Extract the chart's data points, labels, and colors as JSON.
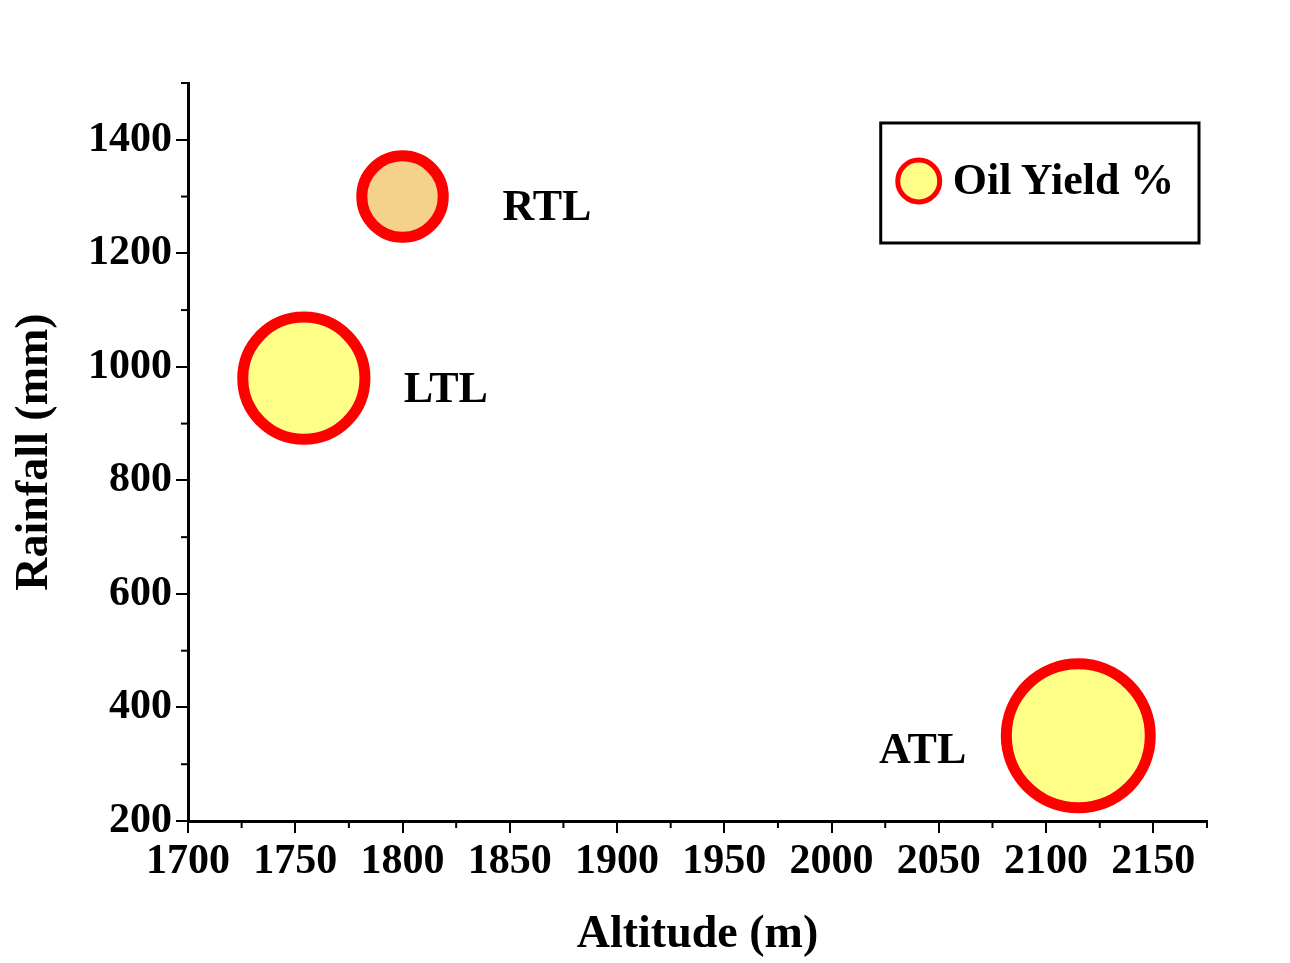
{
  "chart_data": {
    "type": "bubble",
    "xlabel": "Altitude (m)",
    "ylabel": "Rainfall (mm)",
    "x": [
      1800,
      1754,
      2115
    ],
    "series": [
      {
        "name": "Oil Yield %",
        "color": "#ffff88",
        "colors": [
          "#f5d28c",
          "#ffff88",
          "#ffff88"
        ],
        "values": [
          1300,
          980,
          350
        ],
        "sizes": [
          0.32,
          0.72,
          1
        ]
      }
    ],
    "xlim": [
      1700,
      2175
    ],
    "xticks": [
      1700,
      1750,
      1800,
      1850,
      1900,
      1950,
      2000,
      2050,
      2100,
      2150
    ],
    "ylim": [
      200,
      1500
    ],
    "yticks": [
      200,
      400,
      600,
      800,
      1000,
      1200,
      1400
    ],
    "annotations": [
      {
        "text": "RTL",
        "x": 1800,
        "y": 1300
      },
      {
        "text": "LTL",
        "x": 1754,
        "y": 980
      },
      {
        "text": "ATL",
        "x": 2115,
        "y": 350
      }
    ],
    "grid": false,
    "legend": "top right"
  }
}
